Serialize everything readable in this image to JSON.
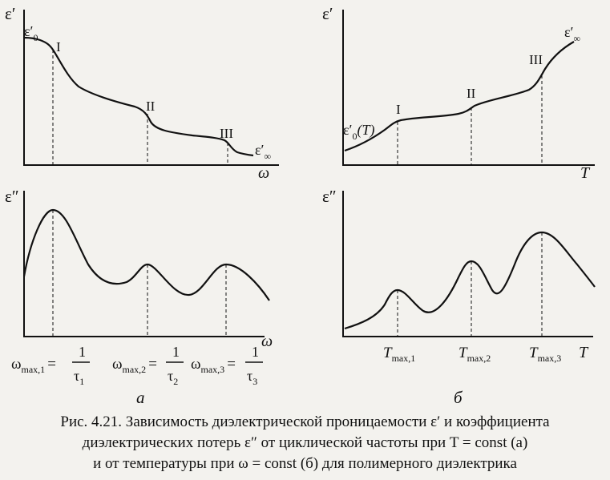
{
  "figure": {
    "panel_a": {
      "upper": {
        "ylabel": "ε′",
        "xlabel": "ω",
        "start_label": "ε′",
        "start_sub": "0",
        "end_label": "ε′",
        "end_sub": "∞",
        "regions": [
          "I",
          "II",
          "III"
        ]
      },
      "lower": {
        "ylabel": "ε″",
        "xlabel": "ω",
        "formulas": [
          {
            "lhs": "ω",
            "lhs_sub": "max,1",
            "eq": "=",
            "num": "1",
            "den": "τ",
            "den_sub": "1"
          },
          {
            "lhs": "ω",
            "lhs_sub": "max,2",
            "eq": "=",
            "num": "1",
            "den": "τ",
            "den_sub": "2"
          },
          {
            "lhs": "ω",
            "lhs_sub": "max,3",
            "eq": "=",
            "num": "1",
            "den": "τ",
            "den_sub": "3"
          }
        ]
      },
      "label": "а"
    },
    "panel_b": {
      "upper": {
        "ylabel": "ε′",
        "xlabel": "T",
        "start_label": "ε′",
        "start_sub": "0",
        "start_arg": "(T)",
        "end_label": "ε′",
        "end_sub": "∞",
        "regions": [
          "I",
          "II",
          "III"
        ]
      },
      "lower": {
        "ylabel": "ε″",
        "xlabel": "T",
        "ticks": [
          {
            "main": "T",
            "sub": "max,1"
          },
          {
            "main": "T",
            "sub": "max,2"
          },
          {
            "main": "T",
            "sub": "max,3"
          }
        ]
      },
      "label": "б"
    }
  },
  "caption": {
    "line1": "Рис. 4.21. Зависимость диэлектрической проницаемости ε′ и коэффициента",
    "line2": "диэлектрических потерь ε″ от циклической частоты при T = const (а)",
    "line3": "и от температуры при ω = const (б) для полимерного диэлектрика"
  }
}
